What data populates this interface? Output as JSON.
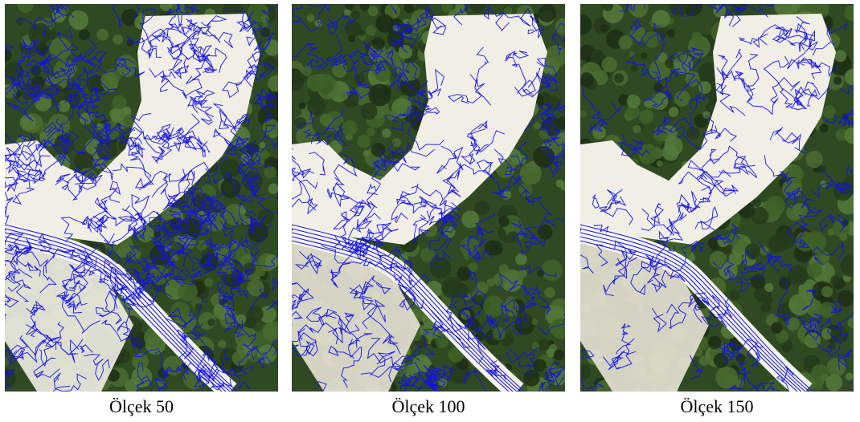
{
  "panels": [
    {
      "caption": "Ölçek 50"
    },
    {
      "caption": "Ölçek 100"
    },
    {
      "caption": "Ölçek 150"
    }
  ]
}
